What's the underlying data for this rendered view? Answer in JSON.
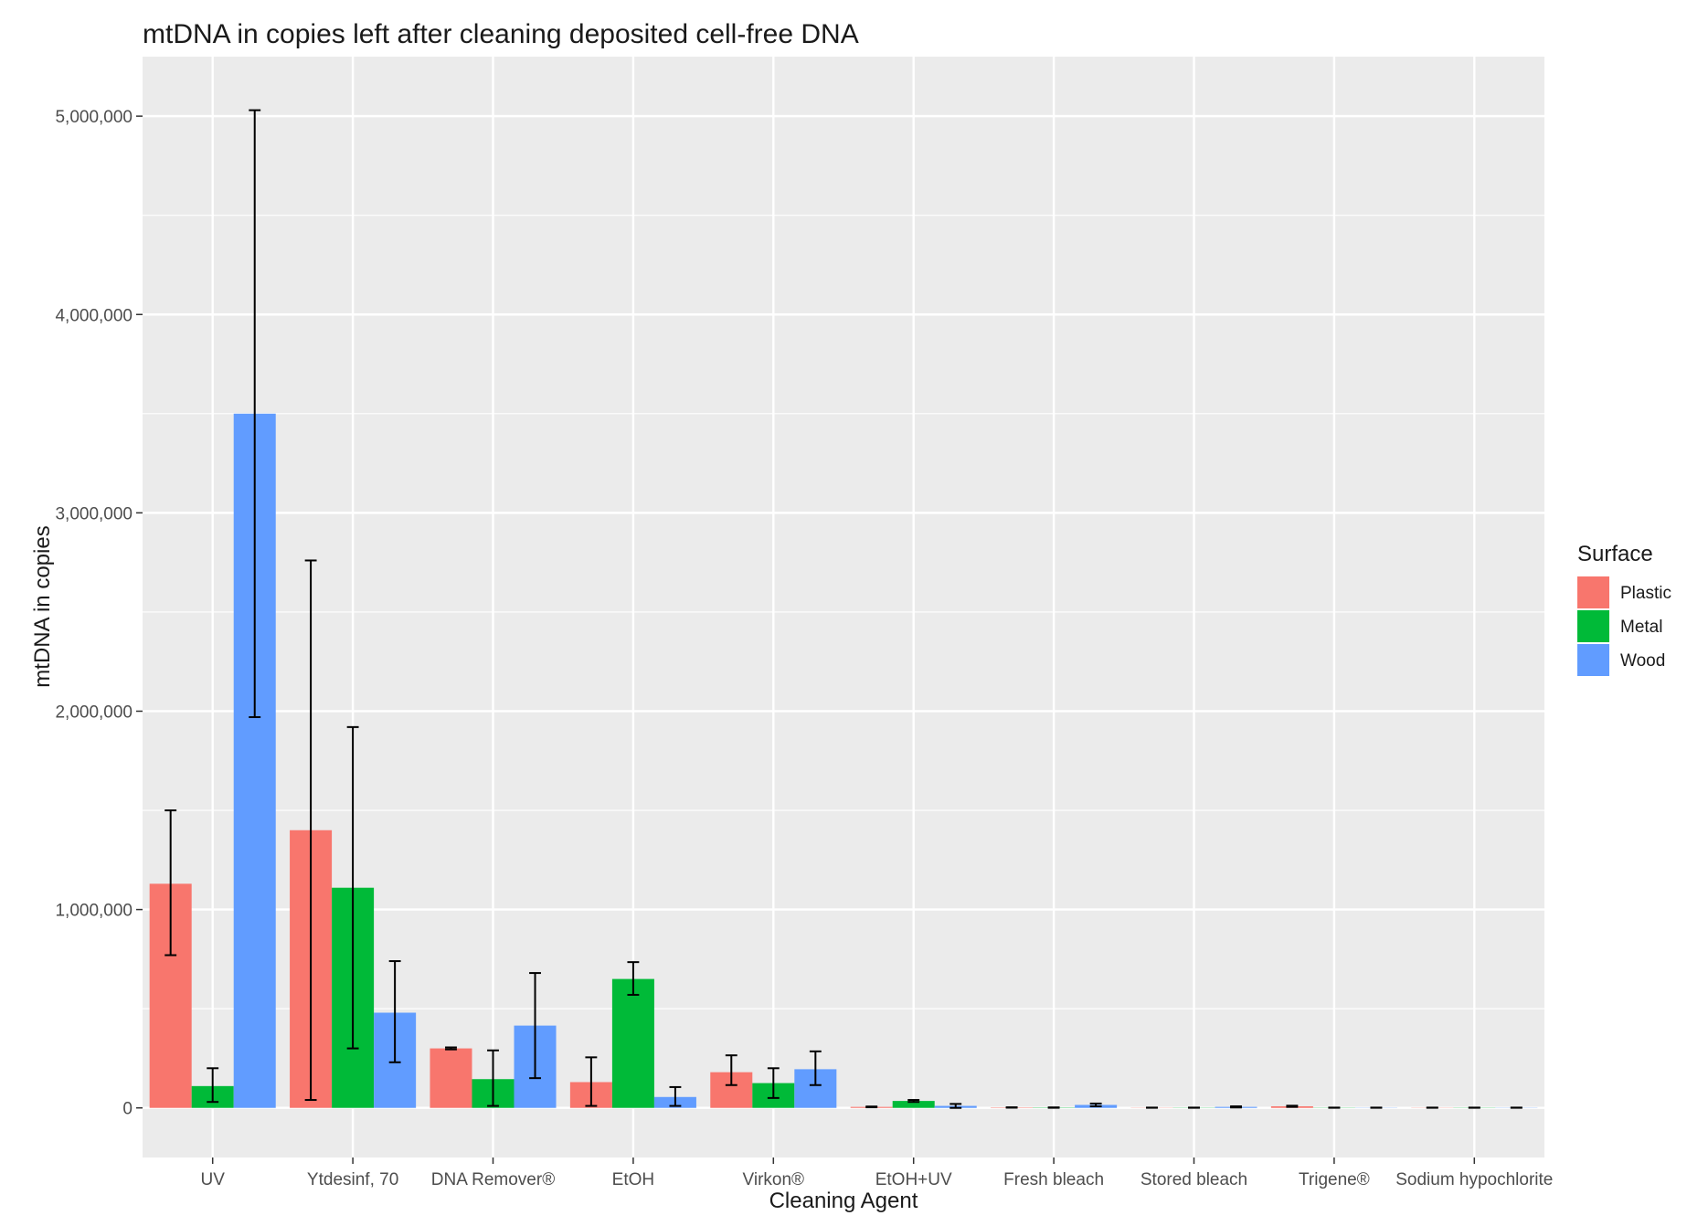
{
  "chart_data": {
    "type": "bar",
    "title": "mtDNA in copies left after cleaning deposited cell-free DNA",
    "xlabel": "Cleaning Agent",
    "ylabel": "mtDNA in copies",
    "ylim": [
      -250000,
      5300000
    ],
    "yticks": [
      0,
      1000000,
      2000000,
      3000000,
      4000000,
      5000000
    ],
    "ytick_labels": [
      "0",
      "1,000,000",
      "2,000,000",
      "3,000,000",
      "4,000,000",
      "5,000,000"
    ],
    "grid": true,
    "legend": {
      "title": "Surface",
      "position": "right"
    },
    "categories": [
      "UV",
      "Ytdesinf, 70",
      "DNA Remover®",
      "EtOH",
      "Virkon®",
      "EtOH+UV",
      "Fresh bleach",
      "Stored bleach",
      "Trigene®",
      "Sodium hypochlorite"
    ],
    "series": [
      {
        "name": "Plastic",
        "color": "#F8766D",
        "values": [
          1130000,
          1400000,
          300000,
          130000,
          180000,
          5000,
          2000,
          1000,
          8000,
          1000
        ],
        "err_lower": [
          770000,
          40000,
          295000,
          10000,
          115000,
          3000,
          1000,
          500,
          5000,
          500
        ],
        "err_upper": [
          1500000,
          2760000,
          305000,
          255000,
          265000,
          7000,
          3000,
          1500,
          11000,
          1500
        ]
      },
      {
        "name": "Metal",
        "color": "#00BA38",
        "values": [
          110000,
          1110000,
          145000,
          650000,
          125000,
          35000,
          1500,
          1000,
          1000,
          1000
        ],
        "err_lower": [
          30000,
          300000,
          10000,
          570000,
          50000,
          30000,
          500,
          500,
          500,
          500
        ],
        "err_upper": [
          200000,
          1920000,
          290000,
          735000,
          200000,
          40000,
          2500,
          1500,
          1500,
          1500
        ]
      },
      {
        "name": "Wood",
        "color": "#619CFF",
        "values": [
          3500000,
          480000,
          415000,
          55000,
          195000,
          10000,
          15000,
          5000,
          1000,
          1000
        ],
        "err_lower": [
          1970000,
          230000,
          150000,
          10000,
          115000,
          0,
          8000,
          2000,
          500,
          500
        ],
        "err_upper": [
          5030000,
          740000,
          680000,
          105000,
          285000,
          20000,
          22000,
          8000,
          1500,
          1500
        ]
      }
    ]
  }
}
